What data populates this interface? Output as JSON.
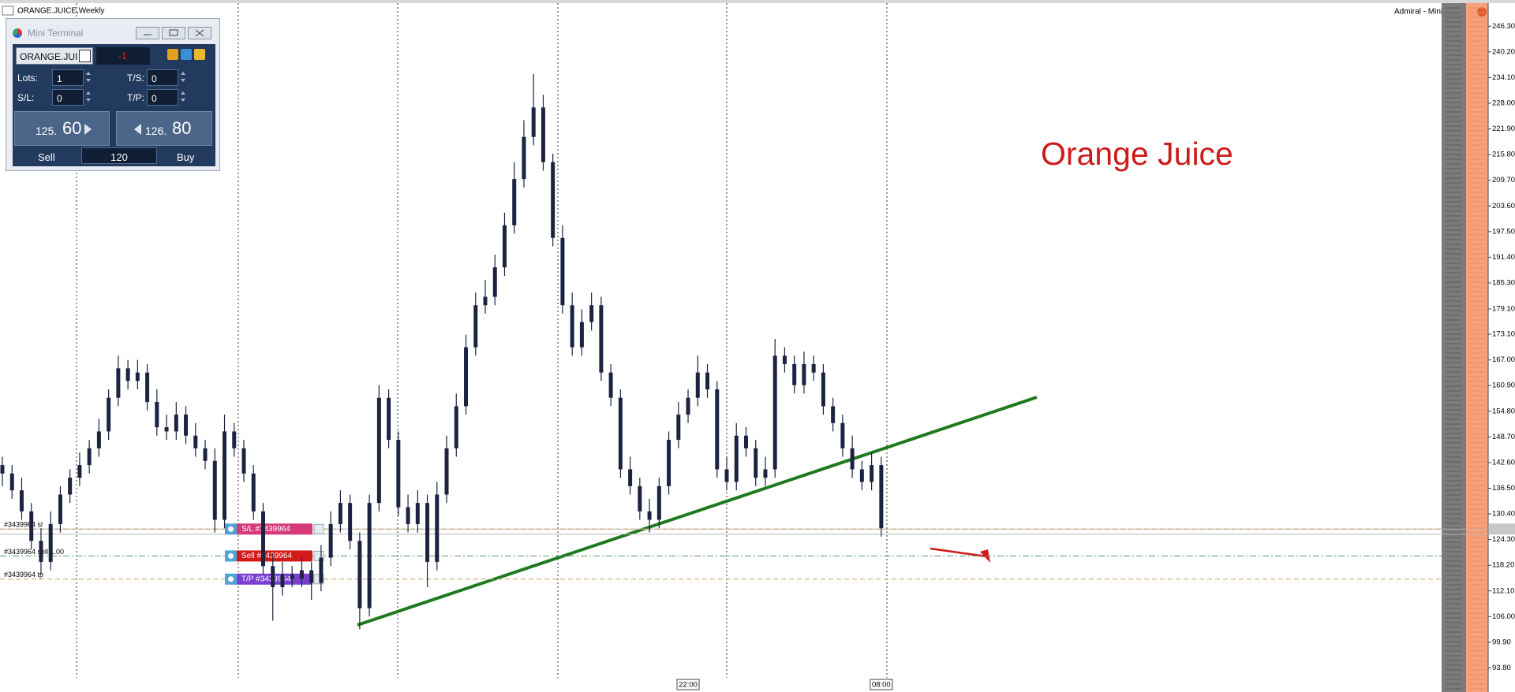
{
  "window": {
    "title": "ORANGE.JUICE,Weekly",
    "right_label": "Admiral - Mini Terminal"
  },
  "terminal": {
    "title": "Mini Terminal",
    "symbol": "ORANGE.JUI",
    "position": "-1",
    "lots_label": "Lots:",
    "lots": "1",
    "ts_label": "T/S:",
    "ts": "0",
    "sl_label": "S/L:",
    "sl": "0",
    "tp_label": "T/P:",
    "tp": "0",
    "sell_price": {
      "small": "125.",
      "big": "60"
    },
    "buy_price": {
      "small": "126.",
      "big": "80"
    },
    "sell": "Sell",
    "spread": "120",
    "buy": "Buy"
  },
  "chart_data": {
    "type": "candlestick",
    "annotation": "Orange Juice",
    "color": "#1c2340",
    "categories": [
      null,
      null,
      null,
      null,
      null,
      null,
      null,
      null,
      null,
      null,
      null,
      null,
      null,
      null,
      null,
      null,
      null,
      null,
      null,
      null,
      null,
      null,
      null,
      null,
      null,
      null,
      null,
      null,
      null,
      null,
      null,
      null,
      null,
      null,
      null,
      null,
      null,
      null,
      null,
      null,
      null,
      null,
      null,
      null,
      null,
      null,
      null,
      null,
      null,
      null,
      null,
      null,
      null,
      null,
      null,
      null,
      null,
      null,
      null,
      null,
      null,
      null,
      null,
      null,
      null,
      null,
      null,
      null,
      null,
      null,
      null,
      "22:00",
      null,
      null,
      null,
      null,
      null,
      null,
      null,
      null,
      null,
      null,
      null,
      null,
      null,
      null,
      null,
      null,
      null,
      null,
      null,
      "08:00"
    ],
    "open": [
      142,
      140,
      136,
      131,
      124,
      119,
      128,
      135,
      139,
      142,
      146,
      150,
      158,
      165,
      162,
      164,
      157,
      151,
      150,
      154,
      149,
      146,
      143,
      129,
      150,
      146,
      140,
      131,
      118,
      113,
      116,
      115,
      117,
      114,
      120,
      128,
      133,
      124,
      108,
      133,
      158,
      148,
      132,
      128,
      133,
      119,
      135,
      146,
      156,
      170,
      180,
      182,
      189,
      199,
      210,
      220,
      227,
      214,
      196,
      180,
      170,
      176,
      180,
      164,
      158,
      141,
      137,
      131,
      129,
      137,
      148,
      154,
      158,
      164,
      160,
      141,
      138,
      149,
      146,
      139,
      141,
      168,
      166,
      161,
      166,
      164,
      156,
      152,
      146,
      141,
      138,
      142
    ],
    "high": [
      144,
      142,
      139,
      133,
      127,
      131,
      137,
      141,
      145,
      148,
      153,
      160,
      168,
      167,
      167,
      166,
      160,
      154,
      157,
      156,
      152,
      148,
      146,
      154,
      152,
      148,
      142,
      133,
      121,
      119,
      118,
      120,
      119,
      123,
      131,
      136,
      135,
      126,
      135,
      161,
      160,
      150,
      135,
      136,
      135,
      138,
      149,
      159,
      173,
      183,
      186,
      192,
      202,
      214,
      224,
      235,
      230,
      216,
      199,
      183,
      179,
      183,
      182,
      166,
      160,
      144,
      139,
      134,
      139,
      150,
      157,
      160,
      168,
      166,
      162,
      144,
      152,
      151,
      148,
      144,
      172,
      170,
      168,
      169,
      168,
      166,
      158,
      154,
      149,
      143,
      145,
      144
    ],
    "low": [
      137,
      134,
      129,
      122,
      116,
      117,
      126,
      133,
      137,
      140,
      144,
      148,
      156,
      160,
      160,
      155,
      149,
      148,
      148,
      147,
      144,
      141,
      126,
      127,
      144,
      138,
      129,
      116,
      105,
      111,
      113,
      113,
      110,
      112,
      118,
      126,
      122,
      103,
      106,
      131,
      146,
      130,
      126,
      126,
      113,
      117,
      133,
      144,
      154,
      168,
      178,
      180,
      187,
      197,
      208,
      218,
      212,
      194,
      178,
      168,
      168,
      174,
      162,
      156,
      139,
      135,
      129,
      126,
      127,
      135,
      146,
      152,
      156,
      158,
      139,
      136,
      136,
      144,
      137,
      137,
      139,
      164,
      159,
      159,
      162,
      154,
      150,
      144,
      139,
      136,
      136,
      125
    ],
    "close": [
      140,
      136,
      131,
      124,
      119,
      128,
      135,
      139,
      142,
      146,
      150,
      158,
      165,
      162,
      164,
      157,
      151,
      150,
      154,
      149,
      146,
      143,
      129,
      150,
      146,
      140,
      131,
      118,
      113,
      116,
      115,
      117,
      114,
      120,
      128,
      133,
      124,
      108,
      133,
      158,
      148,
      132,
      128,
      133,
      119,
      135,
      146,
      156,
      170,
      180,
      182,
      189,
      199,
      210,
      220,
      227,
      214,
      196,
      180,
      170,
      176,
      180,
      164,
      158,
      141,
      137,
      131,
      129,
      137,
      148,
      154,
      158,
      164,
      160,
      141,
      138,
      149,
      146,
      139,
      141,
      168,
      166,
      161,
      166,
      164,
      156,
      152,
      146,
      141,
      138,
      142,
      127
    ],
    "levels": [
      {
        "name": "S/L #3439964",
        "label": "#3439964 sl",
        "value": 126.8,
        "color": "#c8a060",
        "tag_color": "#d63a7a",
        "style": "dashed"
      },
      {
        "name": "Sell #3439964",
        "label": "#3439964 sell 1.00",
        "value": 120.4,
        "color": "#5f9a70",
        "tag_color": "#d11a1a",
        "style": "dashdot"
      },
      {
        "name": "T/P #3439964",
        "label": "#3439964 tp",
        "value": 114.9,
        "color": "#c8a060",
        "tag_color": "#7a3fd0",
        "style": "dashed"
      }
    ],
    "price_lines": [
      125.6,
      126.8
    ],
    "ylim": [
      89.2,
      251.6
    ],
    "yticks": [
      {
        "value": 246.3,
        "label": "246.30"
      },
      {
        "value": 240.2,
        "label": "240.20"
      },
      {
        "value": 234.1,
        "label": "234.10"
      },
      {
        "value": 228,
        "label": "228.00"
      },
      {
        "value": 221.9,
        "label": "221.90"
      },
      {
        "value": 215.8,
        "label": "215.80"
      },
      {
        "value": 209.7,
        "label": "209.70"
      },
      {
        "value": 203.6,
        "label": "203.60"
      },
      {
        "value": 197.5,
        "label": "197.50"
      },
      {
        "value": 191.4,
        "label": "191.40"
      },
      {
        "value": 185.3,
        "label": "185.30"
      },
      {
        "value": 179.1,
        "label": "179.10"
      },
      {
        "value": 173.1,
        "label": "173.10"
      },
      {
        "value": 167,
        "label": "167.00"
      },
      {
        "value": 160.9,
        "label": "160.90"
      },
      {
        "value": 154.8,
        "label": "154.80"
      },
      {
        "value": 148.7,
        "label": "148.70"
      },
      {
        "value": 142.6,
        "label": "142.60"
      },
      {
        "value": 136.5,
        "label": "136.50"
      },
      {
        "value": 130.4,
        "label": "130.40"
      },
      {
        "value": 124.3,
        "label": "124.30"
      },
      {
        "value": 118.2,
        "label": "118.20"
      },
      {
        "value": 112.1,
        "label": "112.10"
      },
      {
        "value": 106,
        "label": "106.00"
      },
      {
        "value": 99.9,
        "label": "99.90"
      },
      {
        "value": 93.8,
        "label": "93.80"
      }
    ]
  }
}
